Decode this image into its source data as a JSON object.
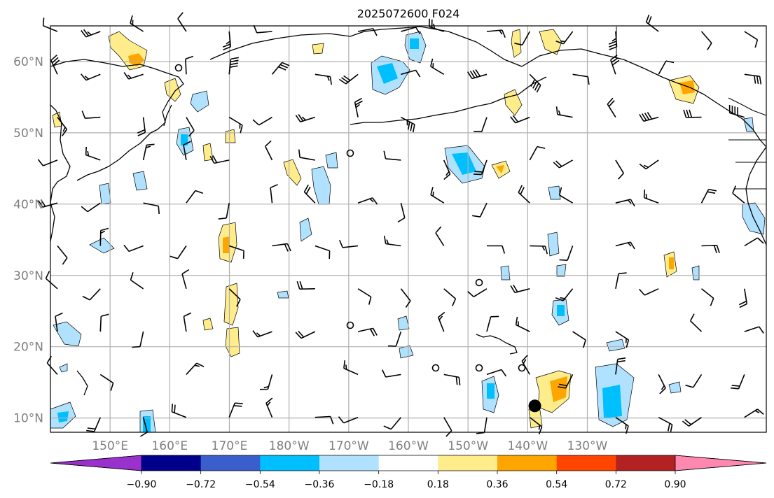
{
  "title": "2025072600 F024",
  "lat_labels": [
    "60°N",
    "50°N",
    "40°N",
    "30°N",
    "20°N",
    "10°N"
  ],
  "lon_labels": [
    "150°E",
    "160°E",
    "170°E",
    "180°W",
    "170°W",
    "160°W",
    "150°W",
    "140°W",
    "130°W"
  ],
  "colorbar": {
    "ticks": [
      "−0.90",
      "−0.72",
      "−0.54",
      "−0.36",
      "−0.18",
      "0.18",
      "0.36",
      "0.54",
      "0.72",
      "0.90"
    ],
    "colors": [
      "#9932cc",
      "#00008b",
      "#3a5fcd",
      "#00bfff",
      "#b0e2ff",
      "#ffffff",
      "#ffec8b",
      "#ffa500",
      "#ff4500",
      "#b22222",
      "#ff88b0"
    ]
  },
  "map": {
    "extent_lon": [
      140,
      260
    ],
    "extent_lat": [
      8,
      65
    ],
    "marker": {
      "lon": 221.2,
      "lat": 11.7,
      "color": "#000000"
    }
  }
}
